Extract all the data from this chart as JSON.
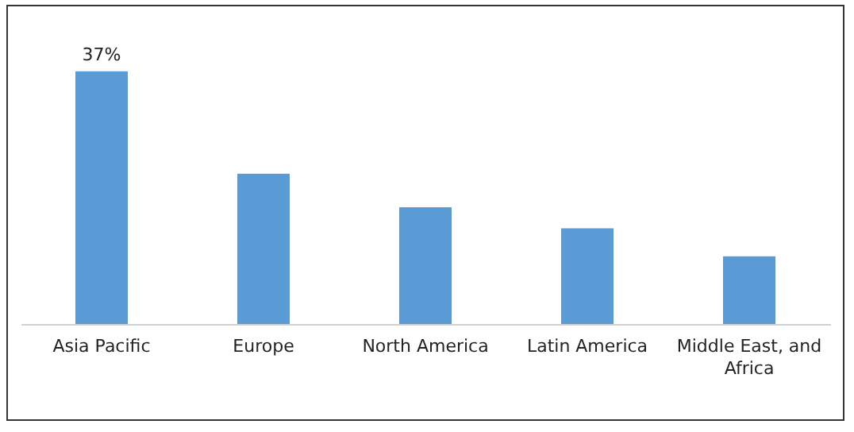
{
  "chart_data": {
    "type": "bar",
    "categories": [
      "Asia Pacific",
      "Europe",
      "North America",
      "Latin America",
      "Middle East, and Africa"
    ],
    "values": [
      37,
      22.0,
      17.1,
      14.0,
      9.9
    ],
    "value_labels": [
      "37%",
      null,
      null,
      null,
      null
    ],
    "color": "#5b9bd5",
    "grid": false
  }
}
